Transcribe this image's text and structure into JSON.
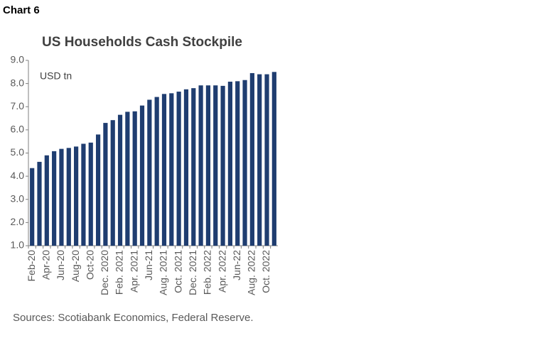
{
  "header": "Chart 6",
  "chart_data": {
    "type": "bar",
    "title": "US Households Cash Stockpile",
    "annotation": "USD tn",
    "source": "Sources: Scotiabank Economics, Federal Reserve.",
    "categories": [
      "Feb-20",
      null,
      "Apr-20",
      null,
      "Jun-20",
      null,
      "Aug-20",
      null,
      "Oct-20",
      null,
      "Dec. 2020",
      null,
      "Feb. 2021",
      null,
      "Apr. 2021",
      null,
      "Jun-21",
      null,
      "Aug. 2021",
      null,
      "Oct. 2021",
      null,
      "Dec. 2021",
      null,
      "Feb. 2022",
      null,
      "Apr. 2022",
      null,
      "Jun-22",
      null,
      "Aug. 2022",
      null,
      "Oct. 2022",
      null
    ],
    "values": [
      4.35,
      4.62,
      4.9,
      5.08,
      5.18,
      5.22,
      5.28,
      5.4,
      5.45,
      5.8,
      6.3,
      6.42,
      6.65,
      6.78,
      6.8,
      7.05,
      7.3,
      7.42,
      7.55,
      7.58,
      7.65,
      7.75,
      7.8,
      7.92,
      7.92,
      7.92,
      7.9,
      8.08,
      8.1,
      8.15,
      8.45,
      8.4,
      8.4,
      8.5
    ],
    "color": "#1f3d70",
    "ylim": [
      1,
      9
    ],
    "yticks": [
      {
        "value": 1,
        "label": "1.0"
      },
      {
        "value": 2,
        "label": "2.0"
      },
      {
        "value": 3,
        "label": "3.0"
      },
      {
        "value": 4,
        "label": "4.0"
      },
      {
        "value": 5,
        "label": "5.0"
      },
      {
        "value": 6,
        "label": "6.0"
      },
      {
        "value": 7,
        "label": "7.0"
      },
      {
        "value": 8,
        "label": "8.0"
      },
      {
        "value": 9,
        "label": "9.0"
      }
    ],
    "grid": false
  }
}
